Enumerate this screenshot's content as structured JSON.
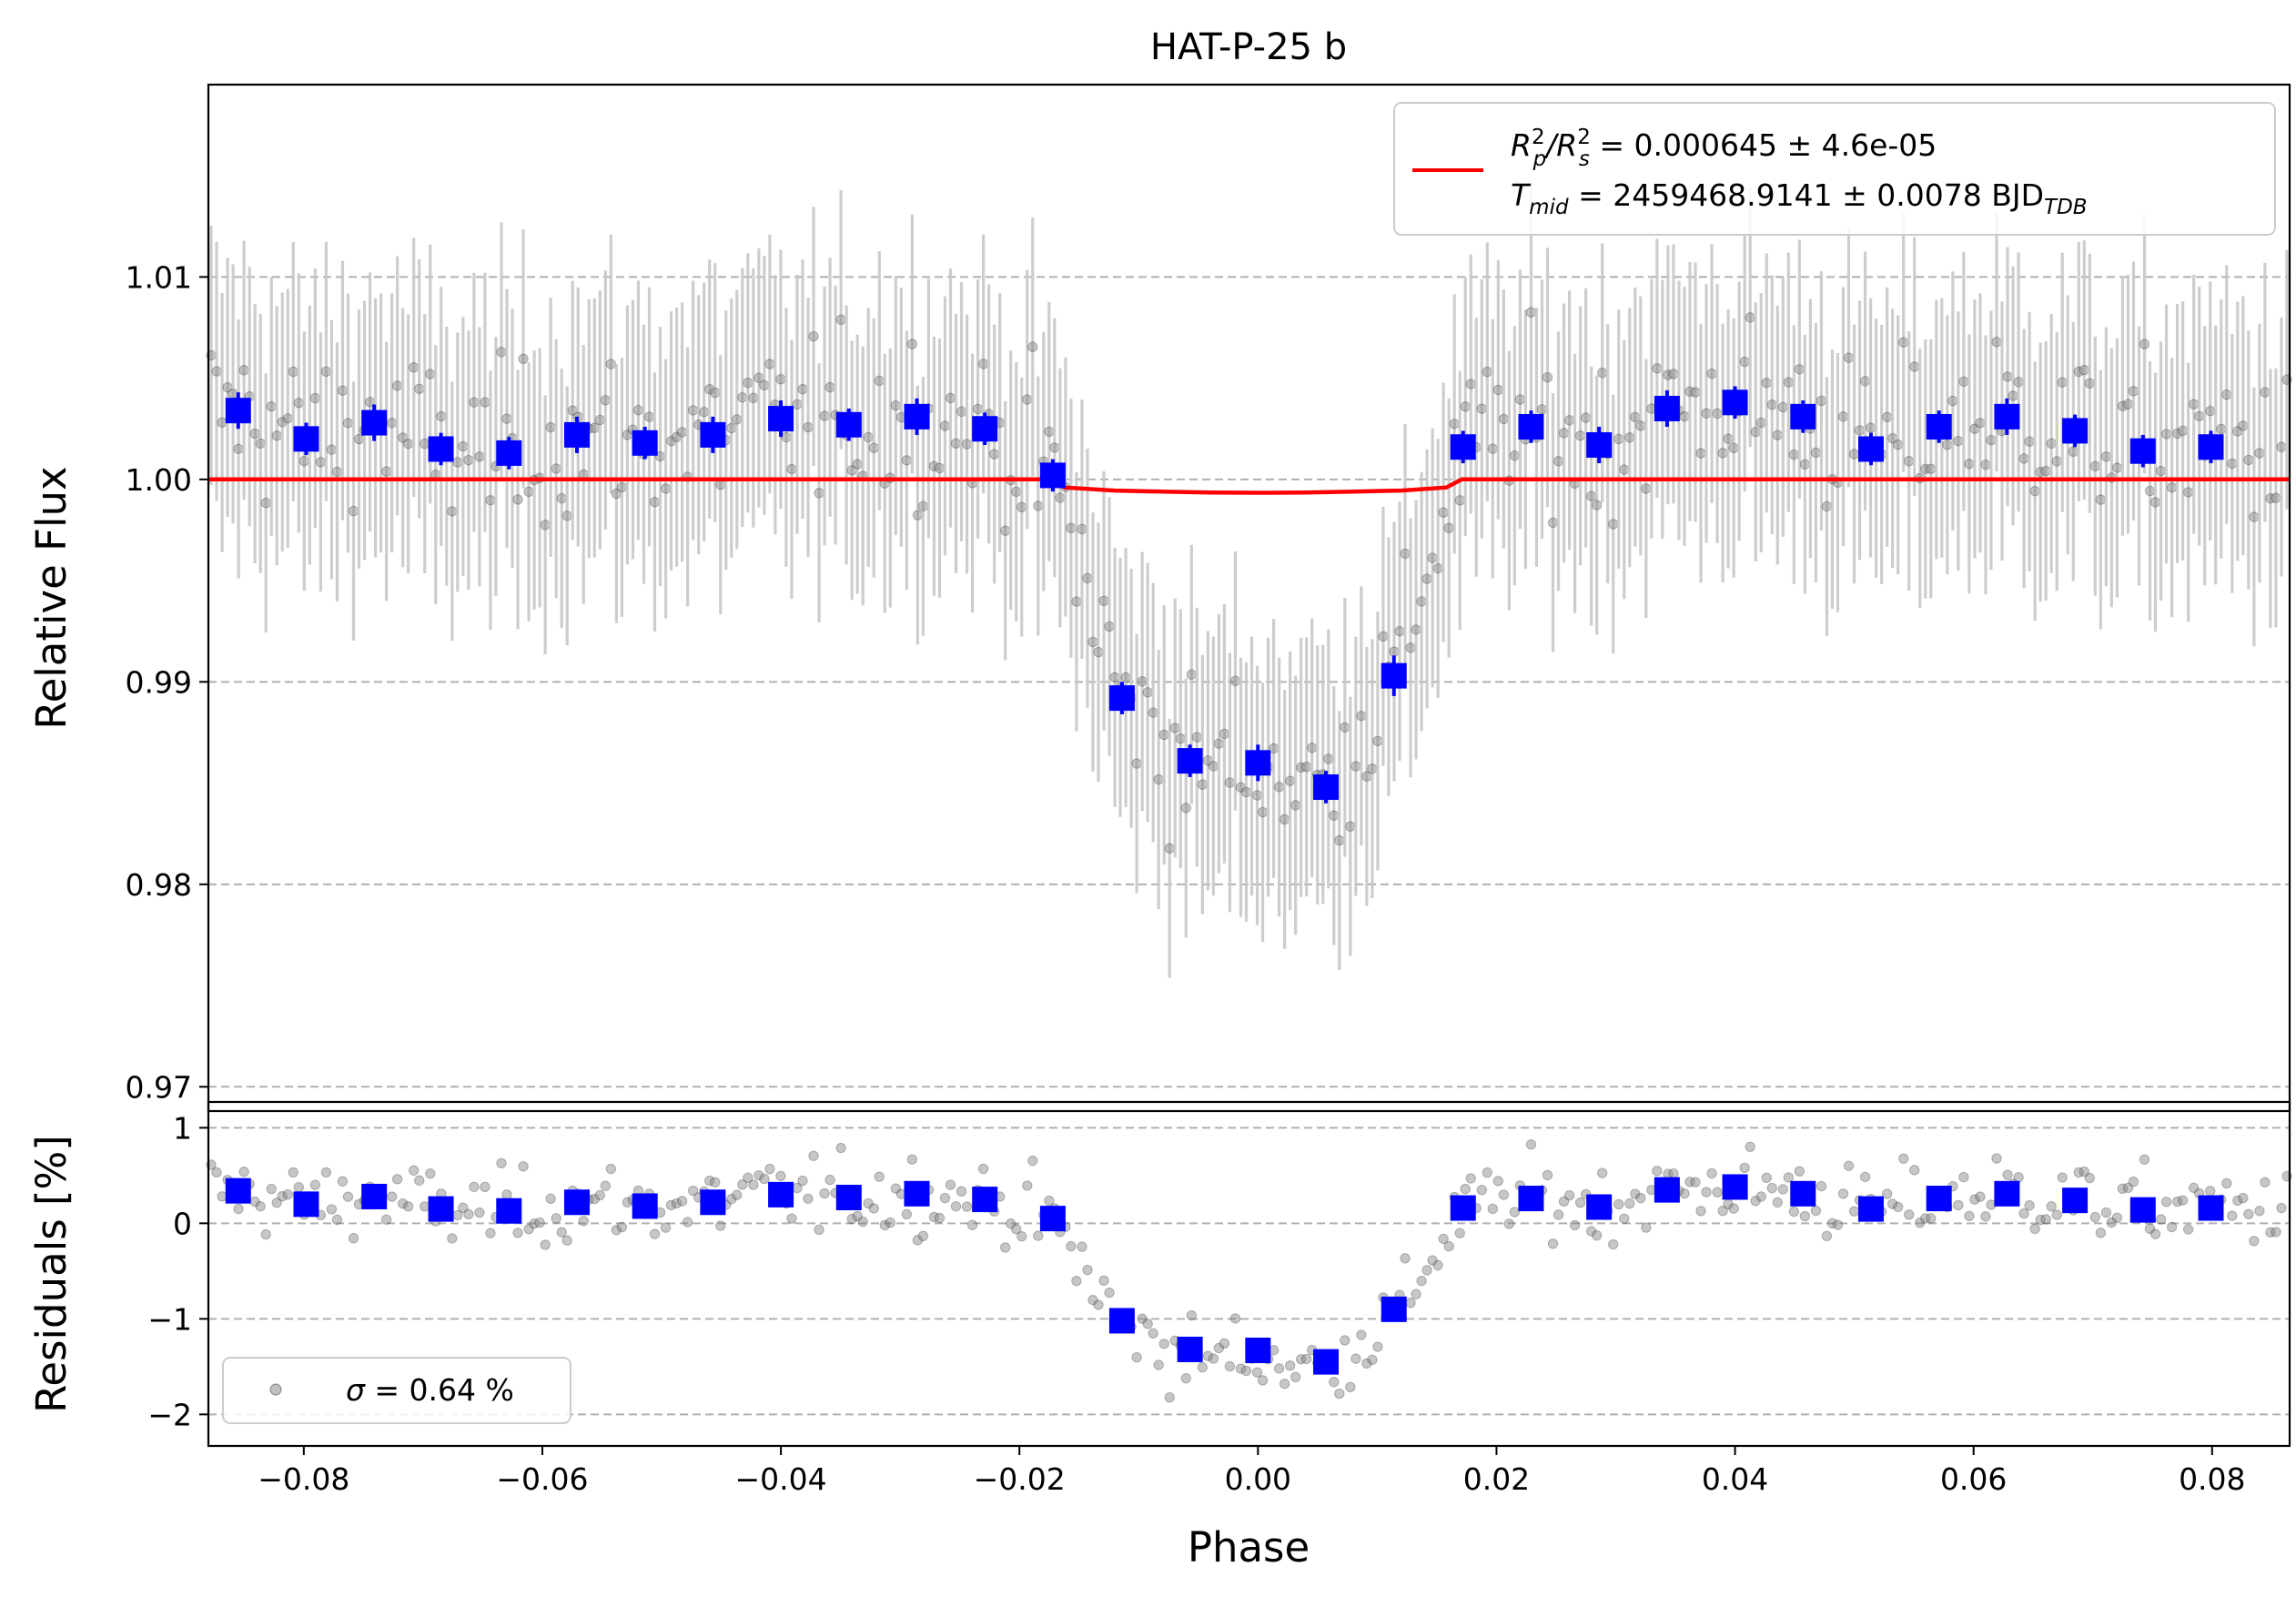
{
  "title": "HAT-P-25 b",
  "chart_data": [
    {
      "panel": "top",
      "type": "scatter",
      "ylabel": "Relative Flux",
      "xlim": [
        -0.088,
        0.0865
      ],
      "ylim": [
        0.9688,
        1.0195
      ],
      "yticks": [
        0.97,
        0.98,
        0.99,
        1.0,
        1.01
      ],
      "ytick_labels": [
        "0.97",
        "0.98",
        "0.99",
        "1.00",
        "1.01"
      ],
      "grid": "horizontal dashed",
      "colors": {
        "raw": "#808080",
        "errorbar": "#c8c8c8",
        "binned": "#0000ff",
        "model": "#ff0000"
      },
      "legend": {
        "placement": "upper right",
        "line1": {
          "prefix": "R",
          "sub1": "p",
          "sup1": "2",
          "slash": "/R",
          "sub2": "s",
          "sup2": "2",
          "value": " = 0.000645 ± 4.6e-05"
        },
        "line2": {
          "prefix": "T",
          "sub1": "mid",
          "value": " = 2459468.9141 ± 0.0078 BJD",
          "sub2": "TDB"
        }
      },
      "model": {
        "name": "transit model",
        "x": [
          -0.088,
          -0.0175,
          -0.0162,
          -0.012,
          -0.008,
          -0.004,
          0.0,
          0.004,
          0.008,
          0.012,
          0.0158,
          0.0171,
          0.0865
        ],
        "y": [
          1.0,
          1.0,
          0.9996,
          0.99945,
          0.9994,
          0.99935,
          0.99934,
          0.99935,
          0.9994,
          0.99945,
          0.9996,
          1.0,
          1.0
        ]
      },
      "binned": {
        "x": [
          -0.0855,
          -0.0798,
          -0.0741,
          -0.0685,
          -0.0628,
          -0.0571,
          -0.0514,
          -0.0457,
          -0.04,
          -0.0343,
          -0.0286,
          -0.0229,
          -0.0172,
          -0.0114,
          -0.0057,
          0.0,
          0.0057,
          0.0114,
          0.0172,
          0.0229,
          0.0286,
          0.0343,
          0.04,
          0.0457,
          0.0514,
          0.0571,
          0.0628,
          0.0685,
          0.0742,
          0.0799
        ],
        "y": [
          1.0034,
          1.002,
          1.0028,
          1.0015,
          1.0013,
          1.0022,
          1.0018,
          1.0022,
          1.003,
          1.0027,
          1.0031,
          1.0025,
          1.0002,
          0.9892,
          0.9861,
          0.986,
          0.9848,
          0.9903,
          1.0016,
          1.0026,
          1.0017,
          1.0035,
          1.0038,
          1.0031,
          1.0015,
          1.0026,
          1.0031,
          1.0024,
          1.0014,
          1.0016
        ],
        "err": [
          0.0009,
          0.0008,
          0.0009,
          0.0008,
          0.0008,
          0.0009,
          0.0008,
          0.0009,
          0.0009,
          0.0008,
          0.0009,
          0.0008,
          0.0008,
          0.0008,
          0.0008,
          0.0009,
          0.0008,
          0.001,
          0.0008,
          0.0008,
          0.0009,
          0.0009,
          0.0008,
          0.0008,
          0.0008,
          0.0008,
          0.0009,
          0.0008,
          0.0008,
          0.0008
        ]
      },
      "raw_errorbar": 0.0064
    },
    {
      "panel": "bottom",
      "type": "scatter",
      "xlabel": "Phase",
      "ylabel": "Residuals [%]",
      "xlim": [
        -0.088,
        0.0865
      ],
      "ylim": [
        -2.33,
        1.27
      ],
      "yticks": [
        -2,
        -1,
        0,
        1
      ],
      "ytick_labels": [
        "−2",
        "−1",
        "0",
        "1"
      ],
      "xticks": [
        -0.08,
        -0.06,
        -0.04,
        -0.02,
        0.0,
        0.02,
        0.04,
        0.06,
        0.08
      ],
      "xtick_labels": [
        "−0.08",
        "−0.06",
        "−0.04",
        "−0.02",
        "0.00",
        "0.02",
        "0.04",
        "0.06",
        "0.08"
      ],
      "grid": "horizontal dashed",
      "legend": {
        "placement": "lower left",
        "label_symbol": "σ",
        "label_value": " = 0.64 %"
      },
      "binned": {
        "x": [
          -0.0855,
          -0.0798,
          -0.0741,
          -0.0685,
          -0.0628,
          -0.0571,
          -0.0514,
          -0.0457,
          -0.04,
          -0.0343,
          -0.0286,
          -0.0229,
          -0.0172,
          -0.0114,
          -0.0057,
          0.0,
          0.0057,
          0.0114,
          0.0172,
          0.0229,
          0.0286,
          0.0343,
          0.04,
          0.0457,
          0.0514,
          0.0571,
          0.0628,
          0.0685,
          0.0742,
          0.0799
        ],
        "y": [
          0.34,
          0.2,
          0.28,
          0.15,
          0.13,
          0.22,
          0.18,
          0.22,
          0.3,
          0.27,
          0.31,
          0.25,
          0.05,
          -1.02,
          -1.32,
          -1.33,
          -1.45,
          -0.9,
          0.16,
          0.26,
          0.17,
          0.35,
          0.38,
          0.31,
          0.15,
          0.26,
          0.31,
          0.24,
          0.14,
          0.16
        ]
      }
    }
  ]
}
